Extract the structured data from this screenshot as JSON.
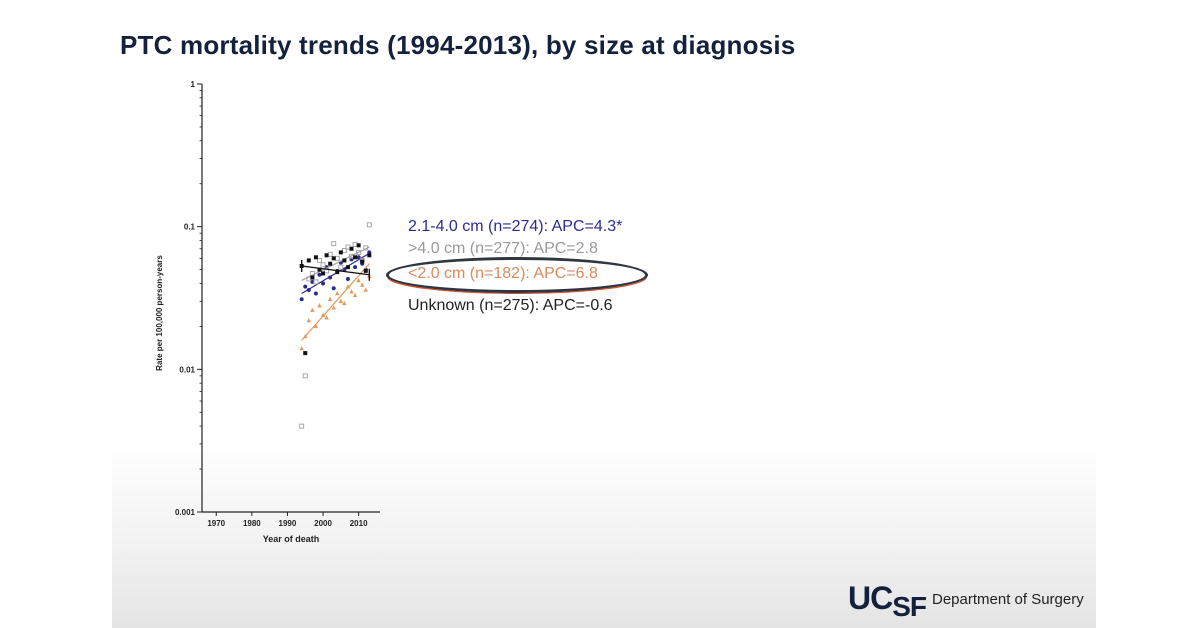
{
  "title": "PTC mortality trends (1994-2013), by size at diagnosis",
  "legend": {
    "mid": "2.1-4.0 cm (n=274): APC=4.3*",
    "large": ">4.0 cm (n=277): APC=2.8",
    "small": "<2.0 cm (n=182): APC=6.8",
    "unknown": "Unknown (n=275): APC=-0.6"
  },
  "logo": {
    "uc": "UC",
    "sf": "SF",
    "dept": "Department of Surgery"
  },
  "chart_data": {
    "type": "scatter",
    "title": "",
    "xlabel": "Year of death",
    "ylabel": "Rate per 100,000 person-years",
    "xlim": [
      1966,
      2016
    ],
    "ylim": [
      0.001,
      1
    ],
    "yscale": "log",
    "xticks": [
      1970,
      1980,
      1990,
      2000,
      2010
    ],
    "yticks": [
      0.001,
      0.01,
      0.1,
      1
    ],
    "ytick_labels": [
      "0.001",
      "0.01",
      "0.1",
      "1"
    ],
    "series": [
      {
        "name": "2.1-4.0 cm (n=274): APC=4.3*",
        "color": "#2b2b8f",
        "marker": "circle",
        "x": [
          1994,
          1995,
          1996,
          1997,
          1998,
          1999,
          2000,
          2001,
          2002,
          2003,
          2004,
          2005,
          2006,
          2007,
          2008,
          2009,
          2010,
          2011,
          2012,
          2013
        ],
        "y": [
          0.031,
          0.038,
          0.036,
          0.041,
          0.034,
          0.046,
          0.04,
          0.052,
          0.044,
          0.037,
          0.049,
          0.056,
          0.05,
          0.043,
          0.059,
          0.052,
          0.061,
          0.055,
          0.05,
          0.066
        ],
        "trend": [
          [
            1994,
            0.034
          ],
          [
            2013,
            0.065
          ]
        ]
      },
      {
        "name": ">4.0 cm (n=277): APC=2.8",
        "color": "#a0a0a0",
        "marker": "square-open",
        "x": [
          1994,
          1995,
          1996,
          1997,
          1998,
          1999,
          2000,
          2001,
          2002,
          2003,
          2004,
          2005,
          2006,
          2007,
          2008,
          2009,
          2010,
          2011,
          2012,
          2013
        ],
        "y": [
          0.004,
          0.009,
          0.043,
          0.047,
          0.041,
          0.058,
          0.054,
          0.049,
          0.064,
          0.076,
          0.06,
          0.052,
          0.068,
          0.072,
          0.062,
          0.075,
          0.066,
          0.058,
          0.071,
          0.103
        ],
        "trend": [
          [
            1994,
            0.042
          ],
          [
            2013,
            0.072
          ]
        ]
      },
      {
        "name": "<2.0 cm (n=182): APC=6.8",
        "color": "#e39a5a",
        "marker": "triangle",
        "x": [
          1994,
          1995,
          1996,
          1997,
          1998,
          1999,
          2000,
          2001,
          2002,
          2003,
          2004,
          2005,
          2006,
          2007,
          2008,
          2009,
          2010,
          2011,
          2012,
          2013
        ],
        "y": [
          0.014,
          0.017,
          0.022,
          0.026,
          0.02,
          0.028,
          0.024,
          0.023,
          0.031,
          0.027,
          0.034,
          0.03,
          0.029,
          0.038,
          0.035,
          0.033,
          0.042,
          0.039,
          0.036,
          0.045
        ],
        "trend": [
          [
            1994,
            0.016
          ],
          [
            2013,
            0.055
          ]
        ]
      },
      {
        "name": "Unknown (n=275): APC=-0.6",
        "color": "#111111",
        "marker": "square",
        "x": [
          1994,
          1995,
          1996,
          1997,
          1998,
          1999,
          2000,
          2001,
          2002,
          2003,
          2004,
          2005,
          2006,
          2007,
          2008,
          2009,
          2010,
          2011,
          2012,
          2013
        ],
        "y": [
          0.053,
          0.013,
          0.058,
          0.044,
          0.061,
          0.05,
          0.047,
          0.063,
          0.055,
          0.06,
          0.048,
          0.066,
          0.058,
          0.052,
          0.07,
          0.061,
          0.074,
          0.057,
          0.049,
          0.063
        ],
        "trend": [
          [
            1994,
            0.053
          ],
          [
            2013,
            0.046
          ]
        ]
      }
    ]
  }
}
